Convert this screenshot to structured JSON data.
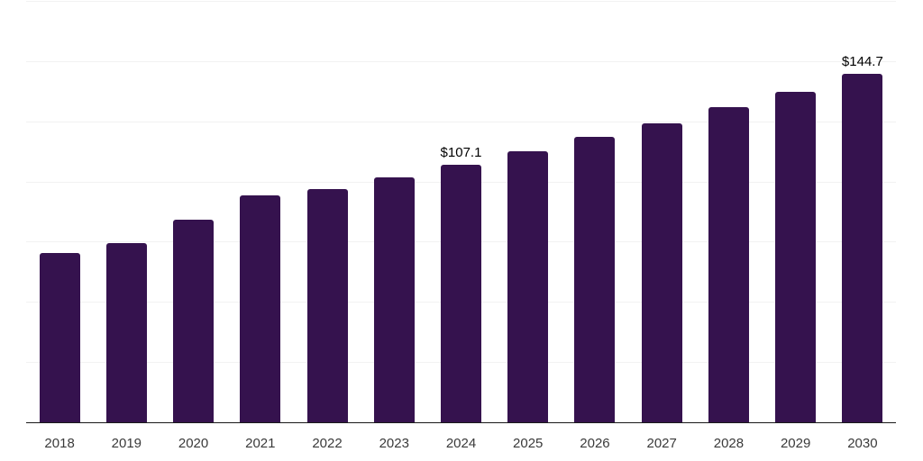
{
  "chart_data": {
    "type": "bar",
    "title": "",
    "xlabel": "",
    "ylabel": "",
    "categories": [
      "2018",
      "2019",
      "2020",
      "2021",
      "2022",
      "2023",
      "2024",
      "2025",
      "2026",
      "2027",
      "2028",
      "2029",
      "2030"
    ],
    "values": [
      70.4,
      74.4,
      84.1,
      94.4,
      96.9,
      101.9,
      107.1,
      112.5,
      118.5,
      124.3,
      130.8,
      137.4,
      144.7
    ],
    "data_labels": {
      "6": "$107.1",
      "12": "$144.7"
    },
    "value_prefix": "$",
    "ylim": [
      0,
      175
    ],
    "gridline_values": [
      25,
      50,
      75,
      100,
      125,
      150,
      175
    ],
    "grid": "horizontal-only",
    "legend_position": "none",
    "colors": {
      "bar": "#35124E",
      "gridline": "#F2F2F2",
      "axis_line": "#1A1A1A",
      "tick_label": "#3A3A3A",
      "data_label": "#000000",
      "background": "#FFFFFF"
    }
  }
}
